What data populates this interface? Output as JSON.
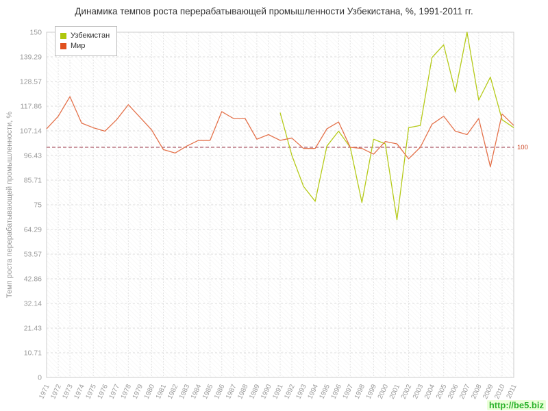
{
  "title": "Динамика темпов роста перерабатывающей промышленности Узбекистана, %, 1991-2011 гг.",
  "watermark": "http://be5.biz",
  "colors": {
    "grid_h": "#dddddd",
    "grid_v": "#e4e4e4",
    "axis_text": "#999999",
    "plot_border": "#cccccc",
    "reference": "#993344",
    "reference_label": "#cc4422",
    "title_text": "#333333"
  },
  "chart_data": {
    "type": "line",
    "title": "Динамика темпов роста перерабатывающей промышленности Узбекистана, %, 1991-2011 гг.",
    "xlabel": "",
    "ylabel": "Темп роста перерабатывающей промышленности, %",
    "ylim": [
      0,
      150
    ],
    "grid": true,
    "legend_position": "top-left",
    "yticks": [
      {
        "v": 0,
        "label": "0"
      },
      {
        "v": 10.71,
        "label": "10.71"
      },
      {
        "v": 21.43,
        "label": "21.43"
      },
      {
        "v": 32.14,
        "label": "32.14"
      },
      {
        "v": 42.86,
        "label": "42.86"
      },
      {
        "v": 53.57,
        "label": "53.57"
      },
      {
        "v": 64.29,
        "label": "64.29"
      },
      {
        "v": 75,
        "label": "75"
      },
      {
        "v": 85.71,
        "label": "85.71"
      },
      {
        "v": 96.43,
        "label": "96.43"
      },
      {
        "v": 107.14,
        "label": "107.14"
      },
      {
        "v": 117.86,
        "label": "117.86"
      },
      {
        "v": 128.57,
        "label": "128.57"
      },
      {
        "v": 139.29,
        "label": "139.29"
      },
      {
        "v": 150,
        "label": "150"
      }
    ],
    "reference_line": {
      "value": 100,
      "label": "100"
    },
    "categories": [
      "1971",
      "1972",
      "1973",
      "1974",
      "1975",
      "1976",
      "1977",
      "1978",
      "1979",
      "1980",
      "1981",
      "1982",
      "1983",
      "1984",
      "1985",
      "1986",
      "1987",
      "1988",
      "1989",
      "1990",
      "1991",
      "1992",
      "1993",
      "1994",
      "1995",
      "1996",
      "1997",
      "1998",
      "1999",
      "2000",
      "2001",
      "2002",
      "2003",
      "2004",
      "2005",
      "2006",
      "2007",
      "2008",
      "2009",
      "2010",
      "2011"
    ],
    "series": [
      {
        "name": "Узбекистан",
        "color": "#b5ca18",
        "marker_color": "#aec70e",
        "values": [
          null,
          null,
          null,
          null,
          null,
          null,
          null,
          null,
          null,
          null,
          null,
          null,
          null,
          null,
          null,
          null,
          null,
          null,
          null,
          null,
          115,
          96.5,
          83,
          76.5,
          100.5,
          107,
          100,
          76,
          103.5,
          101.5,
          68.5,
          108.5,
          109.5,
          139,
          144.5,
          124,
          150,
          120.5,
          130.5,
          112,
          108.5
        ]
      },
      {
        "name": "Мир",
        "color": "#e4714a",
        "marker_color": "#e0501e",
        "values": [
          108,
          113.5,
          122,
          110.5,
          108.5,
          107,
          112,
          118.5,
          113,
          107.5,
          99,
          97.5,
          100.5,
          103,
          103,
          115.5,
          112.5,
          112.5,
          103.5,
          105.5,
          103,
          104,
          99.5,
          99.5,
          108,
          111,
          100,
          99.5,
          97,
          102.5,
          101.5,
          95,
          100,
          110,
          113.5,
          107,
          105.5,
          112.5,
          91.5,
          114.5,
          109.5
        ]
      }
    ]
  }
}
